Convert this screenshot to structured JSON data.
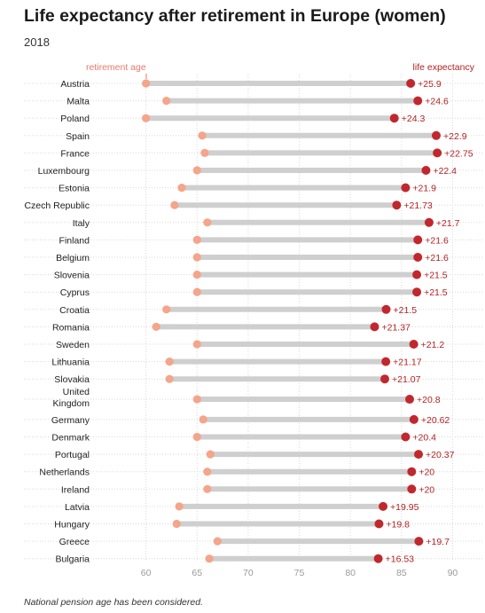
{
  "colors": {
    "retirement": "#f4a58a",
    "life": "#c0282d",
    "bar": "#cfcfcf",
    "label": "#b22222",
    "grid": "#d9d9d9"
  },
  "chart_data": {
    "type": "dumbbell",
    "title": "Life expectancy after retirement in Europe (women)",
    "subtitle": "2018",
    "footnote": "National pension age has been considered.",
    "legend": {
      "retirement": "retirement age",
      "life": "life expectancy"
    },
    "xlim": [
      55,
      93
    ],
    "ticks": [
      60,
      65,
      70,
      75,
      80,
      85,
      90
    ],
    "rows": [
      {
        "country": [
          "Austria"
        ],
        "retirement": 60,
        "life": 85.9,
        "label": "+25.9"
      },
      {
        "country": [
          "Malta"
        ],
        "retirement": 62,
        "life": 86.6,
        "label": "+24.6"
      },
      {
        "country": [
          "Poland"
        ],
        "retirement": 60,
        "life": 84.3,
        "label": "+24.3"
      },
      {
        "country": [
          "Spain"
        ],
        "retirement": 65.5,
        "life": 88.4,
        "label": "+22.9"
      },
      {
        "country": [
          "France"
        ],
        "retirement": 65.75,
        "life": 88.5,
        "label": "+22.75"
      },
      {
        "country": [
          "Luxembourg"
        ],
        "retirement": 65,
        "life": 87.4,
        "label": "+22.4"
      },
      {
        "country": [
          "Estonia"
        ],
        "retirement": 63.5,
        "life": 85.4,
        "label": "+21.9"
      },
      {
        "country": [
          "Czech Republic"
        ],
        "retirement": 62.8,
        "life": 84.53,
        "label": "+21.73"
      },
      {
        "country": [
          "Italy"
        ],
        "retirement": 66,
        "life": 87.7,
        "label": "+21.7"
      },
      {
        "country": [
          "Finland"
        ],
        "retirement": 65,
        "life": 86.6,
        "label": "+21.6"
      },
      {
        "country": [
          "Belgium"
        ],
        "retirement": 65,
        "life": 86.6,
        "label": "+21.6"
      },
      {
        "country": [
          "Slovenia"
        ],
        "retirement": 65,
        "life": 86.5,
        "label": "+21.5"
      },
      {
        "country": [
          "Cyprus"
        ],
        "retirement": 65,
        "life": 86.5,
        "label": "+21.5"
      },
      {
        "country": [
          "Croatia"
        ],
        "retirement": 62,
        "life": 83.5,
        "label": "+21.5"
      },
      {
        "country": [
          "Romania"
        ],
        "retirement": 61,
        "life": 82.37,
        "label": "+21.37"
      },
      {
        "country": [
          "Sweden"
        ],
        "retirement": 65,
        "life": 86.2,
        "label": "+21.2"
      },
      {
        "country": [
          "Lithuania"
        ],
        "retirement": 62.3,
        "life": 83.47,
        "label": "+21.17"
      },
      {
        "country": [
          "Slovakia"
        ],
        "retirement": 62.3,
        "life": 83.37,
        "label": "+21.07"
      },
      {
        "country": [
          "United",
          "Kingdom"
        ],
        "retirement": 65,
        "life": 85.8,
        "label": "+20.8"
      },
      {
        "country": [
          "Germany"
        ],
        "retirement": 65.6,
        "life": 86.22,
        "label": "+20.62"
      },
      {
        "country": [
          "Denmark"
        ],
        "retirement": 65,
        "life": 85.4,
        "label": "+20.4"
      },
      {
        "country": [
          "Portugal"
        ],
        "retirement": 66.3,
        "life": 86.67,
        "label": "+20.37"
      },
      {
        "country": [
          "Netherlands"
        ],
        "retirement": 66,
        "life": 86,
        "label": "+20"
      },
      {
        "country": [
          "Ireland"
        ],
        "retirement": 66,
        "life": 86,
        "label": "+20"
      },
      {
        "country": [
          "Latvia"
        ],
        "retirement": 63.25,
        "life": 83.2,
        "label": "+19.95"
      },
      {
        "country": [
          "Hungary"
        ],
        "retirement": 63,
        "life": 82.8,
        "label": "+19.8"
      },
      {
        "country": [
          "Greece"
        ],
        "retirement": 67,
        "life": 86.7,
        "label": "+19.7"
      },
      {
        "country": [
          "Bulgaria"
        ],
        "retirement": 66.2,
        "life": 82.73,
        "label": "+16.53"
      }
    ]
  }
}
